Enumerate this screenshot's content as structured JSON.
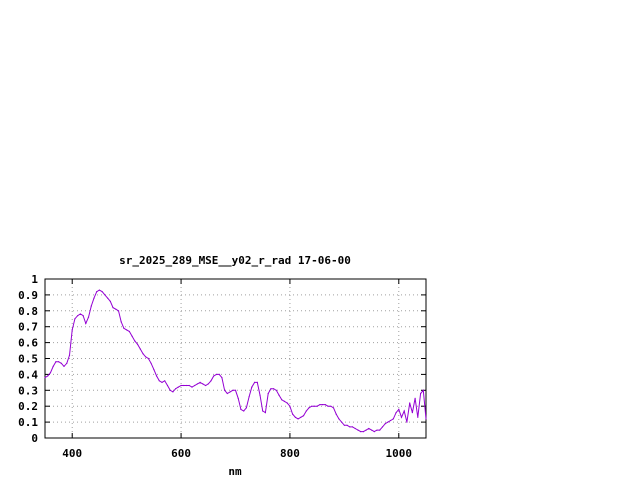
{
  "chart_data": {
    "type": "line",
    "title": "sr_2025_289_MSE__y02_r_rad 17-06-00",
    "xlabel": "nm",
    "ylabel": "",
    "xlim": [
      350,
      1050
    ],
    "ylim": [
      0,
      1
    ],
    "x_ticks": [
      400,
      600,
      800,
      1000
    ],
    "x_tick_labels": [
      "400",
      "600",
      "800",
      "1000"
    ],
    "y_ticks": [
      0,
      0.1,
      0.2,
      0.3,
      0.4,
      0.5,
      0.6,
      0.7,
      0.8,
      0.9,
      1
    ],
    "y_tick_labels": [
      "0",
      "0.1",
      "0.2",
      "0.3",
      "0.4",
      "0.5",
      "0.6",
      "0.7",
      "0.8",
      "0.9",
      "1"
    ],
    "grid": true,
    "series_color": "#9400d3",
    "series": [
      {
        "x": [
          350,
          355,
          360,
          365,
          370,
          375,
          380,
          385,
          390,
          395,
          400,
          405,
          410,
          415,
          420,
          425,
          430,
          435,
          440,
          445,
          450,
          455,
          460,
          465,
          470,
          475,
          480,
          485,
          490,
          495,
          500,
          505,
          510,
          515,
          520,
          525,
          530,
          535,
          540,
          545,
          550,
          555,
          560,
          565,
          570,
          575,
          580,
          585,
          590,
          595,
          600,
          605,
          610,
          615,
          620,
          625,
          630,
          635,
          640,
          645,
          650,
          655,
          660,
          665,
          670,
          675,
          680,
          685,
          690,
          695,
          700,
          705,
          710,
          715,
          720,
          725,
          730,
          735,
          740,
          745,
          750,
          755,
          760,
          765,
          770,
          775,
          780,
          785,
          790,
          795,
          800,
          805,
          810,
          815,
          820,
          825,
          830,
          835,
          840,
          845,
          850,
          855,
          860,
          865,
          870,
          875,
          880,
          885,
          890,
          895,
          900,
          905,
          910,
          915,
          920,
          925,
          930,
          935,
          940,
          945,
          950,
          955,
          960,
          965,
          970,
          975,
          980,
          985,
          990,
          995,
          1000,
          1005,
          1010,
          1015,
          1020,
          1025,
          1030,
          1035,
          1040,
          1045,
          1050
        ],
        "y": [
          0.38,
          0.39,
          0.41,
          0.45,
          0.48,
          0.48,
          0.47,
          0.45,
          0.47,
          0.52,
          0.68,
          0.75,
          0.77,
          0.78,
          0.77,
          0.72,
          0.76,
          0.83,
          0.88,
          0.92,
          0.93,
          0.92,
          0.9,
          0.88,
          0.86,
          0.82,
          0.81,
          0.8,
          0.73,
          0.69,
          0.68,
          0.67,
          0.64,
          0.61,
          0.59,
          0.56,
          0.53,
          0.51,
          0.5,
          0.47,
          0.43,
          0.39,
          0.36,
          0.35,
          0.36,
          0.33,
          0.3,
          0.29,
          0.31,
          0.32,
          0.33,
          0.33,
          0.33,
          0.33,
          0.32,
          0.33,
          0.34,
          0.35,
          0.34,
          0.33,
          0.34,
          0.36,
          0.39,
          0.4,
          0.4,
          0.38,
          0.3,
          0.28,
          0.29,
          0.3,
          0.3,
          0.25,
          0.18,
          0.17,
          0.19,
          0.26,
          0.32,
          0.35,
          0.35,
          0.27,
          0.17,
          0.16,
          0.28,
          0.31,
          0.31,
          0.3,
          0.27,
          0.24,
          0.23,
          0.22,
          0.2,
          0.15,
          0.13,
          0.12,
          0.13,
          0.14,
          0.17,
          0.19,
          0.2,
          0.2,
          0.2,
          0.21,
          0.21,
          0.21,
          0.2,
          0.2,
          0.19,
          0.15,
          0.12,
          0.1,
          0.08,
          0.08,
          0.07,
          0.07,
          0.06,
          0.05,
          0.04,
          0.04,
          0.05,
          0.06,
          0.05,
          0.04,
          0.05,
          0.05,
          0.07,
          0.09,
          0.1,
          0.11,
          0.12,
          0.16,
          0.18,
          0.13,
          0.17,
          0.1,
          0.22,
          0.16,
          0.25,
          0.13,
          0.28,
          0.3,
          0.12
        ]
      }
    ]
  }
}
